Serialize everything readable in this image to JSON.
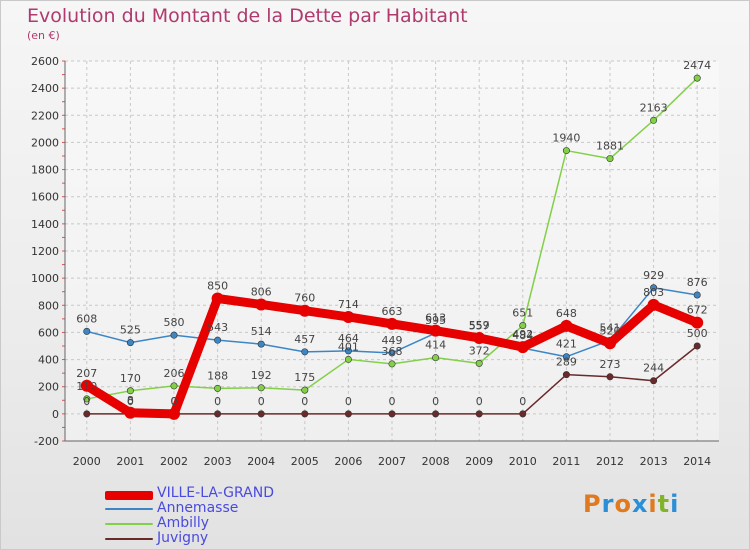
{
  "title": "Evolution du Montant de la Dette par Habitant",
  "subtitle": "(en €)",
  "logo": {
    "text": "Proxiti",
    "letters": [
      "P",
      "r",
      "o",
      "x",
      "i",
      "t",
      "i"
    ],
    "colors": [
      "#e07a1f",
      "#2a8fd6",
      "#e07a1f",
      "#2a8fd6",
      "#e07a1f",
      "#7fb527",
      "#2a8fd6"
    ]
  },
  "chart_data": {
    "type": "line",
    "categories": [
      "2000",
      "2001",
      "2002",
      "2003",
      "2004",
      "2005",
      "2006",
      "2007",
      "2008",
      "2009",
      "2010",
      "2011",
      "2012",
      "2013",
      "2014"
    ],
    "ylim": [
      -200,
      2600
    ],
    "yticks": [
      "-200",
      "0",
      "200",
      "400",
      "600",
      "800",
      "1000",
      "1200",
      "1400",
      "1600",
      "1800",
      "2000",
      "2200",
      "2400",
      "2600"
    ],
    "grid": true,
    "legend_position": "bottom-left",
    "series": [
      {
        "name": "VILLE-LA-GRAND",
        "color": "#e60000",
        "values": [
          207,
          8,
          0,
          850,
          806,
          760,
          714,
          663,
          613,
          559,
          492,
          648,
          520,
          803,
          672
        ],
        "labels": [
          "207",
          "8",
          "0",
          "850",
          "806",
          "760",
          "714",
          "663",
          "613",
          "559",
          "492",
          "648",
          "520",
          "803",
          "672"
        ]
      },
      {
        "name": "Annemasse",
        "color": "#3d86c6",
        "values": [
          608,
          525,
          580,
          543,
          514,
          457,
          464,
          449,
          595,
          557,
          484,
          421,
          541,
          929,
          876
        ],
        "labels": [
          "608",
          "525",
          "580",
          "543",
          "514",
          "457",
          "464",
          "449",
          "595",
          "557",
          "484",
          "421",
          "541",
          "929",
          "876"
        ]
      },
      {
        "name": "Ambilly",
        "color": "#82d048",
        "values": [
          110,
          170,
          206,
          188,
          192,
          175,
          401,
          368,
          414,
          372,
          651,
          1940,
          1881,
          2163,
          2474
        ],
        "labels": [
          "110",
          "170",
          "206",
          "188",
          "192",
          "175",
          "401",
          "368",
          "414",
          "372",
          "651",
          "1940",
          "1881",
          "2163",
          "2474"
        ]
      },
      {
        "name": "Juvigny",
        "color": "#6b2a2a",
        "values": [
          0,
          0,
          0,
          0,
          0,
          0,
          0,
          0,
          0,
          0,
          0,
          289,
          273,
          244,
          500
        ],
        "labels": [
          "0",
          "0",
          "0",
          "0",
          "0",
          "0",
          "0",
          "0",
          "0",
          "0",
          "0",
          "289",
          "273",
          "244",
          "500"
        ]
      }
    ]
  }
}
